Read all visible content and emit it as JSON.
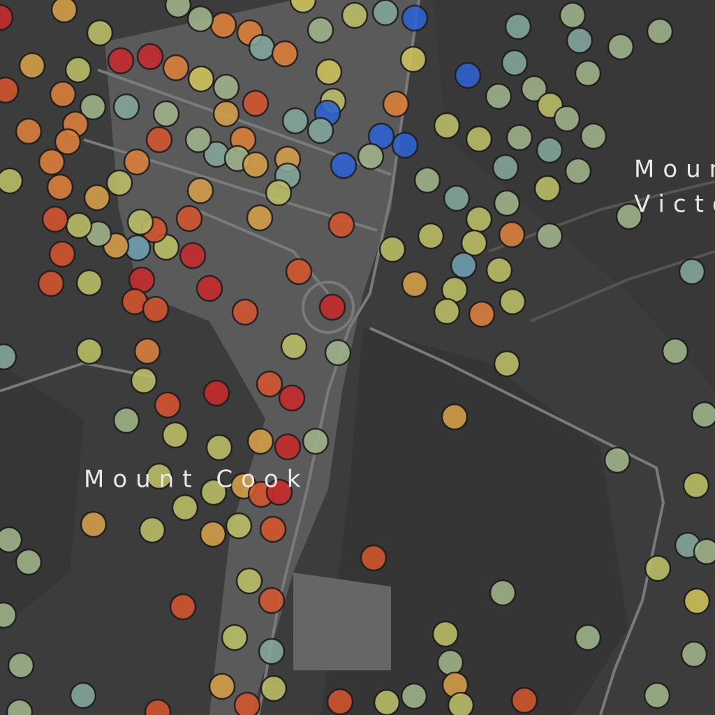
{
  "map": {
    "labels": {
      "mount_cook": "Mount Cook",
      "mount_victoria": [
        "Mount",
        "Victoria"
      ]
    }
  }
}
